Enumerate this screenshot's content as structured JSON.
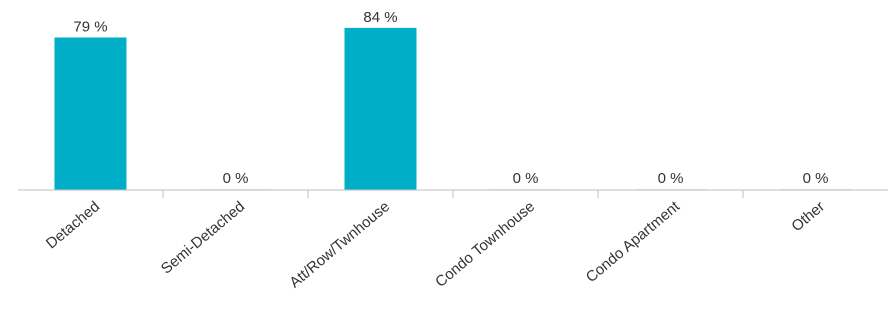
{
  "chart_data": {
    "type": "bar",
    "title": "",
    "xlabel": "",
    "ylabel": "",
    "categories": [
      "Detached",
      "Semi-Detached",
      "Att/Row/Twnhouse",
      "Condo Townhouse",
      "Condo Apartment",
      "Other"
    ],
    "values": [
      79,
      0,
      84,
      0,
      0,
      0
    ],
    "data_labels": [
      "79 %",
      "0 %",
      "84 %",
      "0 %",
      "0 %",
      "0 %"
    ],
    "ylim": [
      0,
      100
    ],
    "unit": "%",
    "grid": false,
    "legend": "none",
    "colors": {
      "bar": "#00aec7",
      "axis": "#bfbfbf",
      "text": "#333333"
    }
  }
}
